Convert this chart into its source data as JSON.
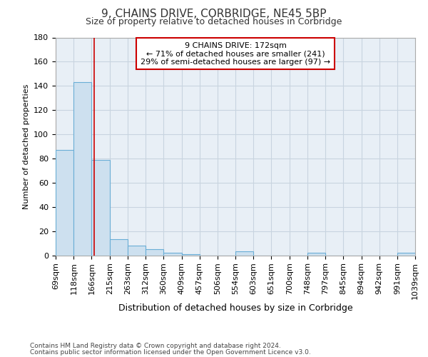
{
  "title": "9, CHAINS DRIVE, CORBRIDGE, NE45 5BP",
  "subtitle": "Size of property relative to detached houses in Corbridge",
  "xlabel": "Distribution of detached houses by size in Corbridge",
  "ylabel": "Number of detached properties",
  "property_size": 172,
  "annotation_line1": "9 CHAINS DRIVE: 172sqm",
  "annotation_line2": "← 71% of detached houses are smaller (241)",
  "annotation_line3": "29% of semi-detached houses are larger (97) →",
  "footnote1": "Contains HM Land Registry data © Crown copyright and database right 2024.",
  "footnote2": "Contains public sector information licensed under the Open Government Licence v3.0.",
  "bin_edges": [
    69,
    118,
    166,
    215,
    263,
    312,
    360,
    409,
    457,
    506,
    554,
    603,
    651,
    700,
    748,
    797,
    845,
    894,
    942,
    991,
    1039
  ],
  "bar_heights": [
    87,
    143,
    79,
    13,
    8,
    5,
    2,
    1,
    0,
    0,
    3,
    0,
    0,
    0,
    2,
    0,
    0,
    0,
    0,
    2
  ],
  "bar_color": "#cde0ef",
  "bar_edge_color": "#6aaed6",
  "vline_color": "#cc0000",
  "grid_color": "#c8d4e0",
  "background_color": "#e8eff6",
  "title_color": "#333333",
  "ylim": [
    0,
    180
  ],
  "yticks": [
    0,
    20,
    40,
    60,
    80,
    100,
    120,
    140,
    160,
    180
  ],
  "tick_fontsize": 8,
  "ylabel_fontsize": 8,
  "xlabel_fontsize": 9,
  "title_fontsize": 11,
  "subtitle_fontsize": 9
}
